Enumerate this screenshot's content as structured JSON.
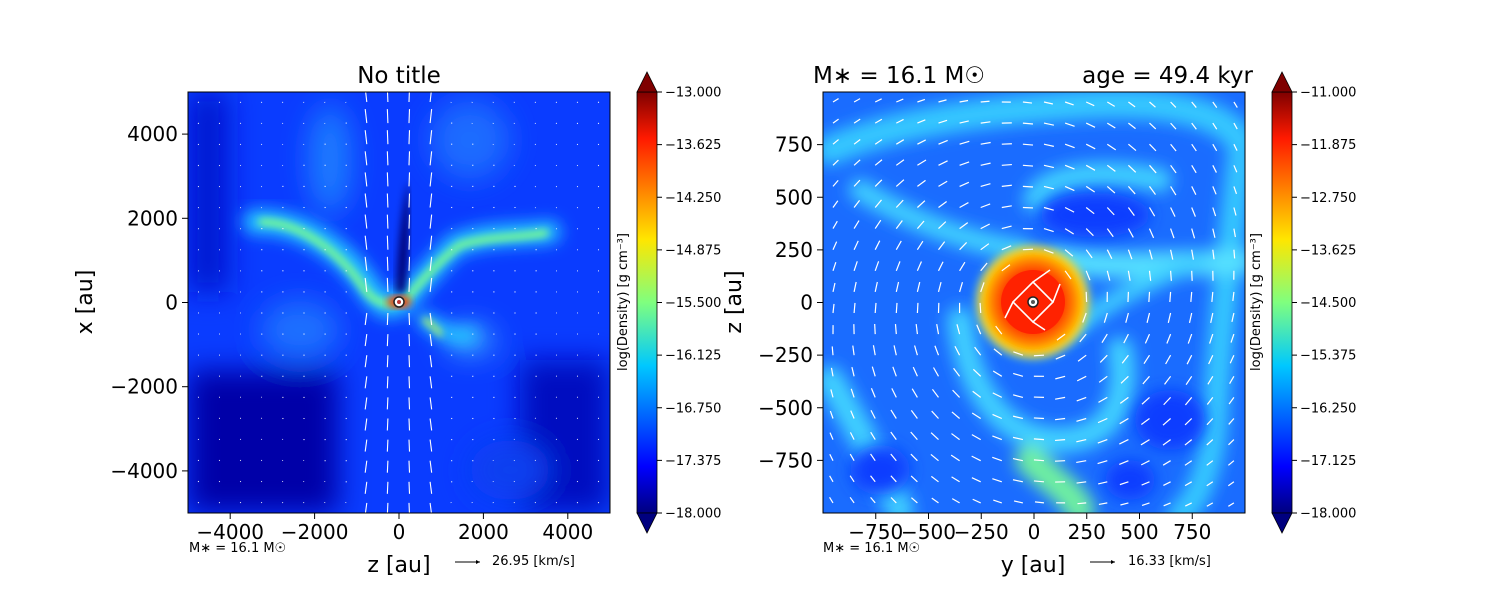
{
  "chart_data": [
    {
      "type": "heatmap",
      "title": "No title",
      "xlabel": "z [au]",
      "ylabel": "x [au]",
      "xlim": [
        -5000,
        5000
      ],
      "ylim": [
        -5000,
        5000
      ],
      "x_ticks": [
        -4000,
        -2000,
        0,
        2000,
        4000
      ],
      "y_ticks": [
        -4000,
        -2000,
        0,
        2000,
        4000
      ],
      "x_tick_labels": [
        "−4000",
        "−2000",
        "0",
        "2000",
        "4000"
      ],
      "y_tick_labels": [
        "−4000",
        "−2000",
        "0",
        "2000",
        "4000"
      ],
      "colorbar": {
        "label": "log(Density) [g cm⁻³]",
        "min": -18.0,
        "max": -13.0,
        "ticks": [
          -13.0,
          -13.625,
          -14.25,
          -14.875,
          -15.5,
          -16.125,
          -16.75,
          -17.375,
          -18.0
        ],
        "tick_labels": [
          "−13.000",
          "−13.625",
          "−14.250",
          "−14.875",
          "−15.500",
          "−16.125",
          "−16.750",
          "−17.375",
          "−18.000"
        ],
        "colormap": "jet",
        "extend": "both"
      },
      "mass_note": "M∗ = 16.1 M☉",
      "quiver_key": "26.95 [km/s]",
      "star_marker": [
        0,
        0
      ]
    },
    {
      "type": "heatmap",
      "title_left": "M∗ = 16.1 M☉",
      "title_right": "age = 49.4 kyr",
      "xlabel": "y [au]",
      "ylabel": "z [au]",
      "xlim": [
        -1000,
        1000
      ],
      "ylim": [
        -1000,
        1000
      ],
      "x_ticks": [
        -750,
        -500,
        -250,
        0,
        250,
        500,
        750
      ],
      "y_ticks": [
        -750,
        -500,
        -250,
        0,
        250,
        500,
        750
      ],
      "x_tick_labels": [
        "−750",
        "−500",
        "−250",
        "0",
        "250",
        "500",
        "750"
      ],
      "y_tick_labels": [
        "−750",
        "−500",
        "−250",
        "0",
        "250",
        "500",
        "750"
      ],
      "colorbar": {
        "label": "log(Density) [g cm⁻³]",
        "min": -18.0,
        "max": -11.0,
        "ticks": [
          -11.0,
          -11.875,
          -12.75,
          -13.625,
          -14.5,
          -15.375,
          -16.25,
          -17.125,
          -18.0
        ],
        "tick_labels": [
          "−11.000",
          "−11.875",
          "−12.750",
          "−13.625",
          "−14.500",
          "−15.375",
          "−16.250",
          "−17.125",
          "−18.000"
        ],
        "colormap": "jet",
        "extend": "both"
      },
      "mass_note": "M∗ = 16.1 M☉",
      "quiver_key": "16.33 [km/s]",
      "star_marker": [
        0,
        0
      ]
    }
  ]
}
